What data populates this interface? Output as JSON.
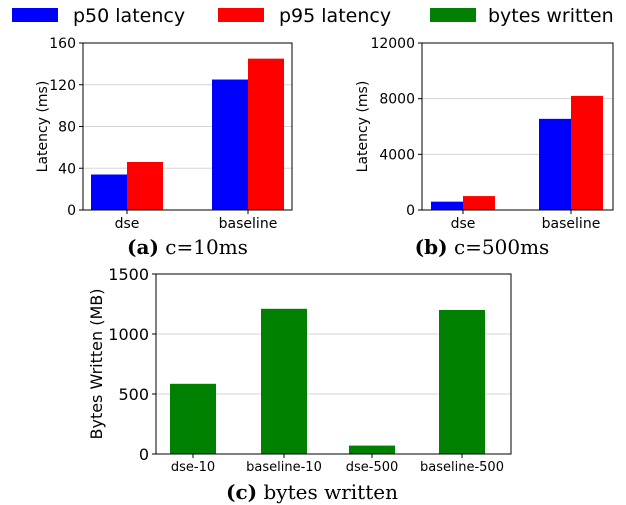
{
  "legend": [
    {
      "label": "p50 latency",
      "color": "#0000ff"
    },
    {
      "label": "p95 latency",
      "color": "#ff0000"
    },
    {
      "label": "bytes written",
      "color": "#008000"
    }
  ],
  "chart_data": [
    {
      "type": "bar",
      "panel": "a",
      "caption_tag": "(a)",
      "caption_text": " c=10ms",
      "categories": [
        "dse",
        "baseline"
      ],
      "series": [
        {
          "name": "p50 latency",
          "values": [
            34,
            125
          ]
        },
        {
          "name": "p95 latency",
          "values": [
            46,
            145
          ]
        }
      ],
      "xlabel": "",
      "ylabel": "Latency (ms)",
      "ylim": [
        0,
        160
      ],
      "yticks": [
        "0",
        "40",
        "80",
        "120",
        "160"
      ],
      "grid": true
    },
    {
      "type": "bar",
      "panel": "b",
      "caption_tag": "(b)",
      "caption_text": " c=500ms",
      "categories": [
        "dse",
        "baseline"
      ],
      "series": [
        {
          "name": "p50 latency",
          "values": [
            600,
            6550
          ]
        },
        {
          "name": "p95 latency",
          "values": [
            1000,
            8200
          ]
        }
      ],
      "xlabel": "",
      "ylabel": "Latency (ms)",
      "ylim": [
        0,
        12000
      ],
      "yticks": [
        "0",
        "4000",
        "8000",
        "12000"
      ],
      "grid": true
    },
    {
      "type": "bar",
      "panel": "c",
      "caption_tag": "(c)",
      "caption_text": " bytes written",
      "categories": [
        "dse-10",
        "baseline-10",
        "dse-500",
        "baseline-500"
      ],
      "series": [
        {
          "name": "bytes written",
          "values": [
            585,
            1210,
            70,
            1200
          ]
        }
      ],
      "xlabel": "",
      "ylabel": "Bytes Written (MB)",
      "ylim": [
        0,
        1500
      ],
      "yticks": [
        "0",
        "500",
        "1000",
        "1500"
      ],
      "grid": true
    }
  ]
}
